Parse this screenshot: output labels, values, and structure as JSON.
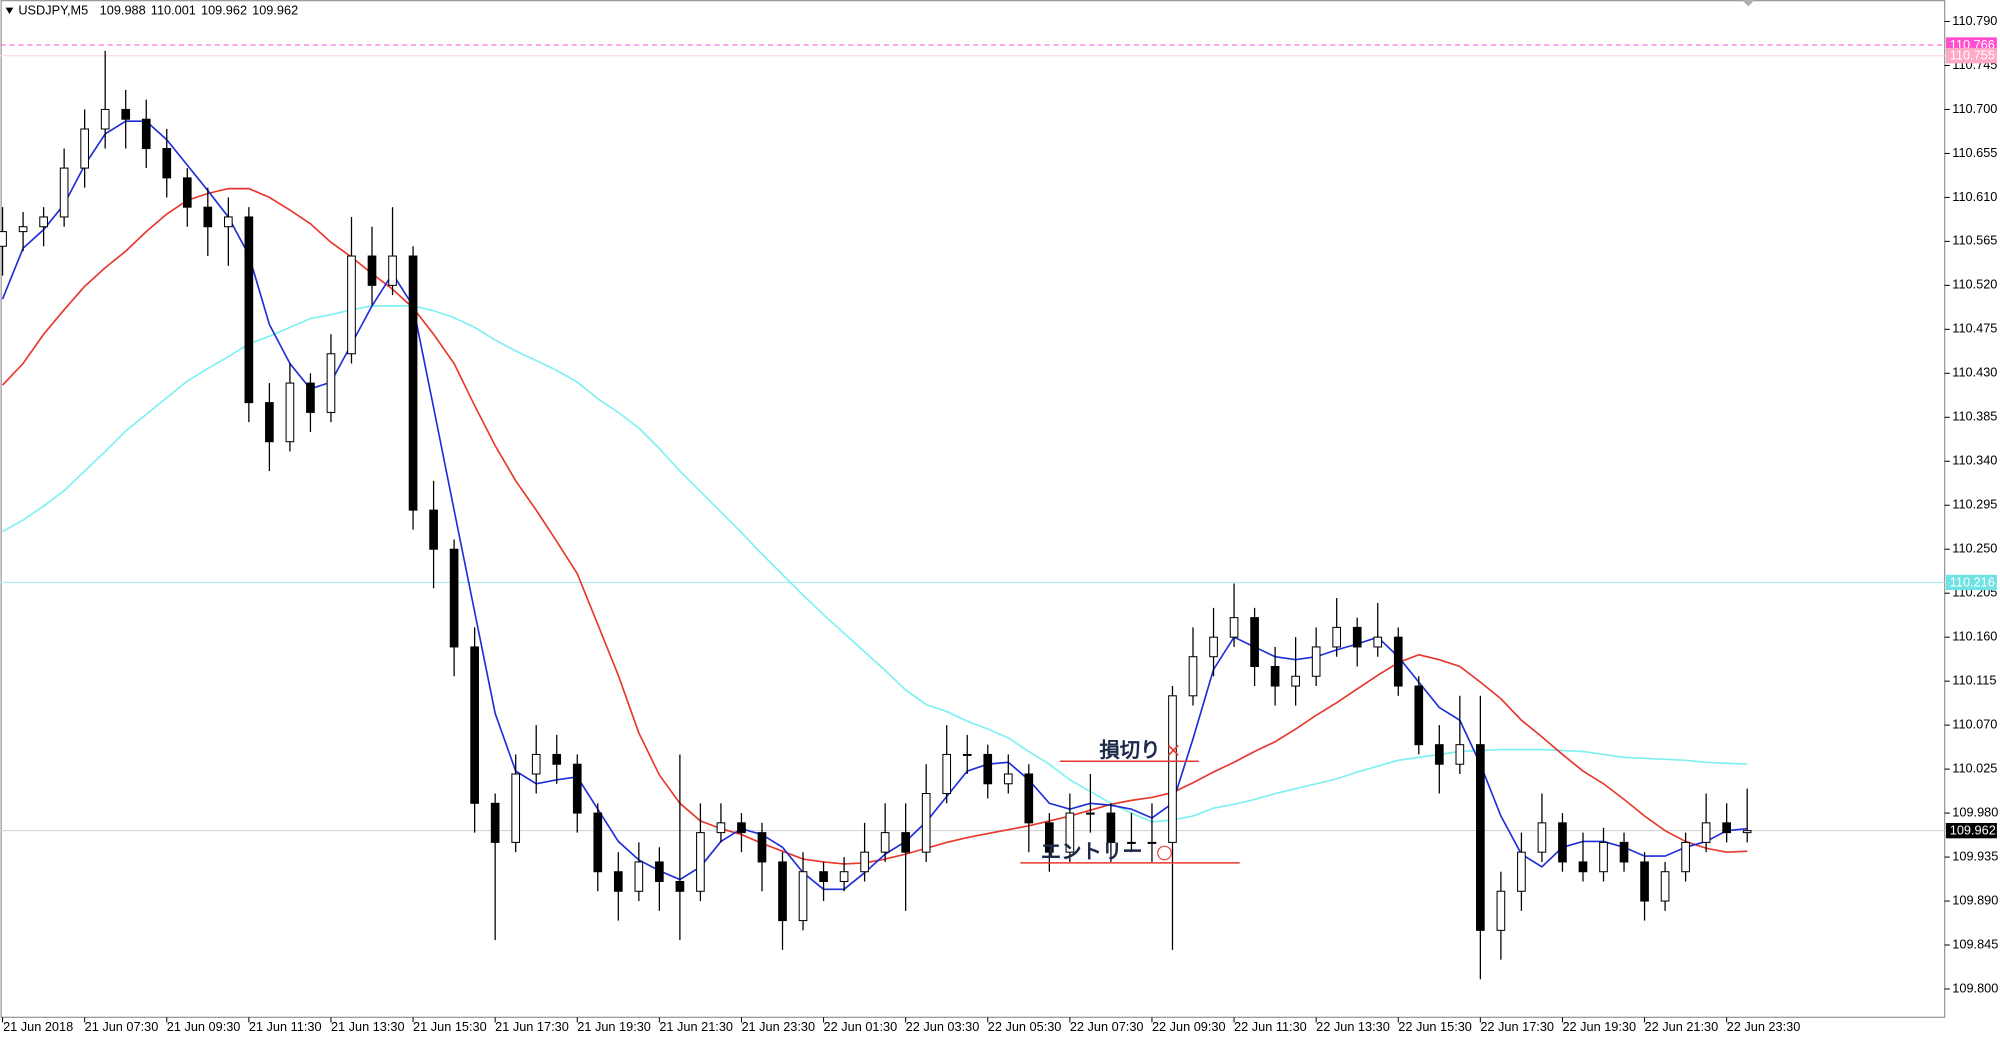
{
  "chart_data": {
    "type": "candlestick",
    "title": "USDJPY,M5",
    "header_values": [
      109.988,
      110.001,
      109.962,
      109.962
    ],
    "ylim": [
      109.771,
      110.812
    ],
    "yticks": [
      {
        "value": 110.79,
        "label": "110.790"
      },
      110.745,
      {
        "value": 110.7,
        "label": "110.700"
      },
      110.655,
      {
        "value": 110.61,
        "label": "110.610"
      },
      110.565,
      {
        "value": 110.52,
        "label": "110.520"
      },
      110.475,
      {
        "value": 110.43,
        "label": "110.430"
      },
      110.385,
      {
        "value": 110.34,
        "label": "110.340"
      },
      110.295,
      {
        "value": 110.25,
        "label": "110.250"
      },
      110.205,
      {
        "value": 110.16,
        "label": "110.160"
      },
      110.115,
      {
        "value": 110.07,
        "label": "110.070"
      },
      110.025,
      {
        "value": 109.98,
        "label": "109.980"
      },
      109.935,
      {
        "value": 109.89,
        "label": "109.890"
      },
      109.845,
      {
        "value": 109.8,
        "label": "109.800"
      }
    ],
    "categories": [
      "21 Jun 2018",
      null,
      null,
      null,
      "21 Jun 07:30",
      null,
      null,
      null,
      "21 Jun 09:30",
      null,
      null,
      null,
      "21 Jun 11:30",
      null,
      null,
      null,
      "21 Jun 13:30",
      null,
      null,
      null,
      "21 Jun 15:30",
      null,
      null,
      null,
      "21 Jun 17:30",
      null,
      null,
      null,
      "21 Jun 19:30",
      null,
      null,
      null,
      "21 Jun 21:30",
      null,
      null,
      null,
      "21 Jun 23:30",
      null,
      null,
      null,
      "22 Jun 01:30",
      null,
      null,
      null,
      "22 Jun 03:30",
      null,
      null,
      null,
      "22 Jun 05:30",
      null,
      null,
      null,
      "22 Jun 07:30",
      null,
      null,
      null,
      "22 Jun 09:30",
      null,
      null,
      null,
      "22 Jun 11:30",
      null,
      null,
      null,
      "22 Jun 13:30",
      null,
      null,
      null,
      "22 Jun 15:30",
      null,
      null,
      null,
      "22 Jun 17:30",
      null,
      null,
      null,
      "22 Jun 19:30",
      null,
      null,
      null,
      "22 Jun 21:30",
      null,
      null,
      null,
      "22 Jun 23:30",
      null
    ],
    "up_color": "#ffffff",
    "down_color": "#000000",
    "outline_color": "#000000",
    "ohlc": [
      [
        110.56,
        110.6,
        110.53,
        110.575
      ],
      [
        110.575,
        110.595,
        110.555,
        110.58
      ],
      [
        110.58,
        110.6,
        110.56,
        110.59
      ],
      [
        110.59,
        110.66,
        110.58,
        110.64
      ],
      [
        110.64,
        110.7,
        110.62,
        110.68
      ],
      [
        110.68,
        110.76,
        110.66,
        110.7
      ],
      [
        110.7,
        110.72,
        110.66,
        110.69
      ],
      [
        110.69,
        110.71,
        110.64,
        110.66
      ],
      [
        110.66,
        110.68,
        110.61,
        110.63
      ],
      [
        110.63,
        110.64,
        110.58,
        110.6
      ],
      [
        110.6,
        110.62,
        110.55,
        110.58
      ],
      [
        110.58,
        110.61,
        110.54,
        110.59
      ],
      [
        110.59,
        110.6,
        110.38,
        110.4
      ],
      [
        110.4,
        110.42,
        110.33,
        110.36
      ],
      [
        110.36,
        110.44,
        110.35,
        110.42
      ],
      [
        110.42,
        110.43,
        110.37,
        110.39
      ],
      [
        110.39,
        110.47,
        110.38,
        110.45
      ],
      [
        110.45,
        110.59,
        110.44,
        110.55
      ],
      [
        110.55,
        110.58,
        110.5,
        110.52
      ],
      [
        110.52,
        110.6,
        110.51,
        110.55
      ],
      [
        110.55,
        110.56,
        110.27,
        110.29
      ],
      [
        110.29,
        110.32,
        110.21,
        110.25
      ],
      [
        110.25,
        110.26,
        110.12,
        110.15
      ],
      [
        110.15,
        110.17,
        109.96,
        109.99
      ],
      [
        109.99,
        110.0,
        109.85,
        109.95
      ],
      [
        109.95,
        110.04,
        109.94,
        110.02
      ],
      [
        110.02,
        110.07,
        110.0,
        110.04
      ],
      [
        110.04,
        110.06,
        110.01,
        110.03
      ],
      [
        110.03,
        110.04,
        109.96,
        109.98
      ],
      [
        109.98,
        109.99,
        109.9,
        109.92
      ],
      [
        109.92,
        109.94,
        109.87,
        109.9
      ],
      [
        109.9,
        109.95,
        109.89,
        109.93
      ],
      [
        109.93,
        109.945,
        109.88,
        109.91
      ],
      [
        109.91,
        110.04,
        109.85,
        109.9
      ],
      [
        109.9,
        109.99,
        109.89,
        109.96
      ],
      [
        109.96,
        109.99,
        109.95,
        109.97
      ],
      [
        109.97,
        109.98,
        109.94,
        109.96
      ],
      [
        109.96,
        109.97,
        109.9,
        109.93
      ],
      [
        109.93,
        109.94,
        109.84,
        109.87
      ],
      [
        109.87,
        109.94,
        109.86,
        109.92
      ],
      [
        109.92,
        109.93,
        109.89,
        109.91
      ],
      [
        109.91,
        109.935,
        109.9,
        109.92
      ],
      [
        109.92,
        109.97,
        109.91,
        109.94
      ],
      [
        109.94,
        109.99,
        109.93,
        109.96
      ],
      [
        109.96,
        109.99,
        109.88,
        109.94
      ],
      [
        109.94,
        110.03,
        109.93,
        110.0
      ],
      [
        110.0,
        110.07,
        109.99,
        110.04
      ],
      [
        110.04,
        110.06,
        110.02,
        110.04
      ],
      [
        110.04,
        110.05,
        109.995,
        110.01
      ],
      [
        110.01,
        110.04,
        110.0,
        110.02
      ],
      [
        110.02,
        110.03,
        109.94,
        109.97
      ],
      [
        109.97,
        109.98,
        109.92,
        109.94
      ],
      [
        109.94,
        110.0,
        109.93,
        109.98
      ],
      [
        109.98,
        110.02,
        109.96,
        109.98
      ],
      [
        109.98,
        109.99,
        109.93,
        109.95
      ],
      [
        109.95,
        109.98,
        109.94,
        109.95
      ],
      [
        109.95,
        109.99,
        109.93,
        109.95
      ],
      [
        109.95,
        110.11,
        109.84,
        110.1
      ],
      [
        110.1,
        110.17,
        110.09,
        110.14
      ],
      [
        110.14,
        110.19,
        110.12,
        110.16
      ],
      [
        110.16,
        110.215,
        110.15,
        110.18
      ],
      [
        110.18,
        110.19,
        110.11,
        110.13
      ],
      [
        110.13,
        110.15,
        110.09,
        110.11
      ],
      [
        110.11,
        110.16,
        110.09,
        110.12
      ],
      [
        110.12,
        110.17,
        110.11,
        110.15
      ],
      [
        110.15,
        110.2,
        110.14,
        110.17
      ],
      [
        110.17,
        110.18,
        110.13,
        110.15
      ],
      [
        110.15,
        110.195,
        110.14,
        110.16
      ],
      [
        110.16,
        110.17,
        110.1,
        110.11
      ],
      [
        110.11,
        110.12,
        110.04,
        110.05
      ],
      [
        110.05,
        110.07,
        110.0,
        110.03
      ],
      [
        110.03,
        110.1,
        110.02,
        110.05
      ],
      [
        110.05,
        110.1,
        109.81,
        109.86
      ],
      [
        109.86,
        109.92,
        109.83,
        109.9
      ],
      [
        109.9,
        109.96,
        109.88,
        109.94
      ],
      [
        109.94,
        110.0,
        109.93,
        109.97
      ],
      [
        109.97,
        109.98,
        109.92,
        109.93
      ],
      [
        109.93,
        109.96,
        109.91,
        109.92
      ],
      [
        109.92,
        109.965,
        109.91,
        109.95
      ],
      [
        109.95,
        109.96,
        109.92,
        109.93
      ],
      [
        109.93,
        109.94,
        109.87,
        109.89
      ],
      [
        109.89,
        109.93,
        109.88,
        109.92
      ],
      [
        109.92,
        109.96,
        109.91,
        109.95
      ],
      [
        109.95,
        110.0,
        109.94,
        109.97
      ],
      [
        109.97,
        109.99,
        109.95,
        109.96
      ],
      [
        109.96,
        110.005,
        109.95,
        109.962
      ]
    ],
    "series": [
      {
        "color": "#7ff0f0",
        "values": [
          110.268,
          110.28,
          110.294,
          110.31,
          110.33,
          110.35,
          110.371,
          110.388,
          110.405,
          110.422,
          110.435,
          110.447,
          110.46,
          110.468,
          110.477,
          110.486,
          110.49,
          110.495,
          110.499,
          110.499,
          110.499,
          110.494,
          110.487,
          110.477,
          110.464,
          110.453,
          110.443,
          110.433,
          110.421,
          110.404,
          110.39,
          110.374,
          110.353,
          110.33,
          110.309,
          110.288,
          110.267,
          110.245,
          110.224,
          110.203,
          110.183,
          110.164,
          110.145,
          110.126,
          110.106,
          110.091,
          110.084,
          110.074,
          110.066,
          110.057,
          110.043,
          110.03,
          110.014,
          110.002,
          109.99,
          109.98,
          109.971,
          109.973,
          109.977,
          109.985,
          109.989,
          109.994,
          110.0,
          110.005,
          110.01,
          110.015,
          110.022,
          110.028,
          110.034,
          110.037,
          110.04,
          110.043,
          110.044,
          110.045,
          110.045,
          110.045,
          110.044,
          110.043,
          110.04,
          110.037,
          110.036,
          110.035,
          110.034,
          110.032,
          110.031,
          110.03
        ]
      },
      {
        "color": "#e8372c",
        "values": [
          110.418,
          110.44,
          110.47,
          110.495,
          110.519,
          110.538,
          110.555,
          110.575,
          110.593,
          110.607,
          110.614,
          110.619,
          110.619,
          110.61,
          110.597,
          110.583,
          110.564,
          110.549,
          110.532,
          110.516,
          110.497,
          110.47,
          110.44,
          110.397,
          110.356,
          110.32,
          110.29,
          110.258,
          110.225,
          110.173,
          110.121,
          110.062,
          110.019,
          109.99,
          109.972,
          109.964,
          109.958,
          109.949,
          109.941,
          109.933,
          109.93,
          109.928,
          109.929,
          109.933,
          109.938,
          109.944,
          109.95,
          109.955,
          109.959,
          109.963,
          109.967,
          109.972,
          109.977,
          109.983,
          109.989,
          109.993,
          109.996,
          110.001,
          110.011,
          110.022,
          110.032,
          110.043,
          110.053,
          110.066,
          110.08,
          110.093,
          110.107,
          110.121,
          110.134,
          110.142,
          110.137,
          110.13,
          110.114,
          110.097,
          110.075,
          110.058,
          110.04,
          110.023,
          110.01,
          109.994,
          109.977,
          109.962,
          109.951,
          109.944,
          109.94,
          109.941
        ]
      },
      {
        "color": "#1f2fd8",
        "values": [
          110.506,
          110.558,
          110.577,
          110.603,
          110.643,
          110.675,
          110.688,
          110.688,
          110.669,
          110.643,
          110.617,
          110.59,
          110.551,
          110.48,
          110.44,
          110.414,
          110.421,
          110.46,
          110.499,
          110.532,
          110.499,
          110.395,
          110.29,
          110.186,
          110.082,
          110.023,
          110.01,
          110.014,
          110.017,
          109.984,
          109.951,
          109.932,
          109.921,
          109.912,
          109.925,
          109.951,
          109.964,
          109.958,
          109.945,
          109.919,
          109.902,
          109.902,
          109.919,
          109.938,
          109.951,
          109.971,
          109.997,
          110.023,
          110.03,
          110.032,
          110.014,
          109.99,
          109.984,
          109.99,
          109.988,
          109.984,
          109.975,
          109.99,
          110.056,
          110.127,
          110.16,
          110.15,
          110.14,
          110.137,
          110.14,
          110.147,
          110.153,
          110.16,
          110.14,
          110.114,
          110.088,
          110.075,
          110.03,
          109.977,
          109.938,
          109.925,
          109.945,
          109.951,
          109.951,
          109.945,
          109.936,
          109.936,
          109.945,
          109.951,
          109.962,
          109.964
        ]
      }
    ],
    "levels": [
      {
        "value": 110.766,
        "color": "#ff4fd0",
        "label_color": "#ff4fd0",
        "style": "dashed"
      },
      {
        "value": 110.755,
        "color": "#ffd0ea",
        "label_color": "#ffa8c8",
        "style": "solid"
      },
      {
        "value": 110.216,
        "color": "#a6eded",
        "label_color": "#6fe3e3",
        "style": "solid"
      },
      {
        "value": 109.962,
        "color": "#cfcfcf",
        "label_color": "#000000",
        "style": "solid"
      }
    ],
    "annotations": [
      {
        "text": "損切り",
        "symbol": "×",
        "value": 110.033,
        "color": "#e8372c"
      },
      {
        "text": "エントリー",
        "symbol": "○",
        "value": 109.929,
        "color": "#e8372c"
      }
    ]
  }
}
